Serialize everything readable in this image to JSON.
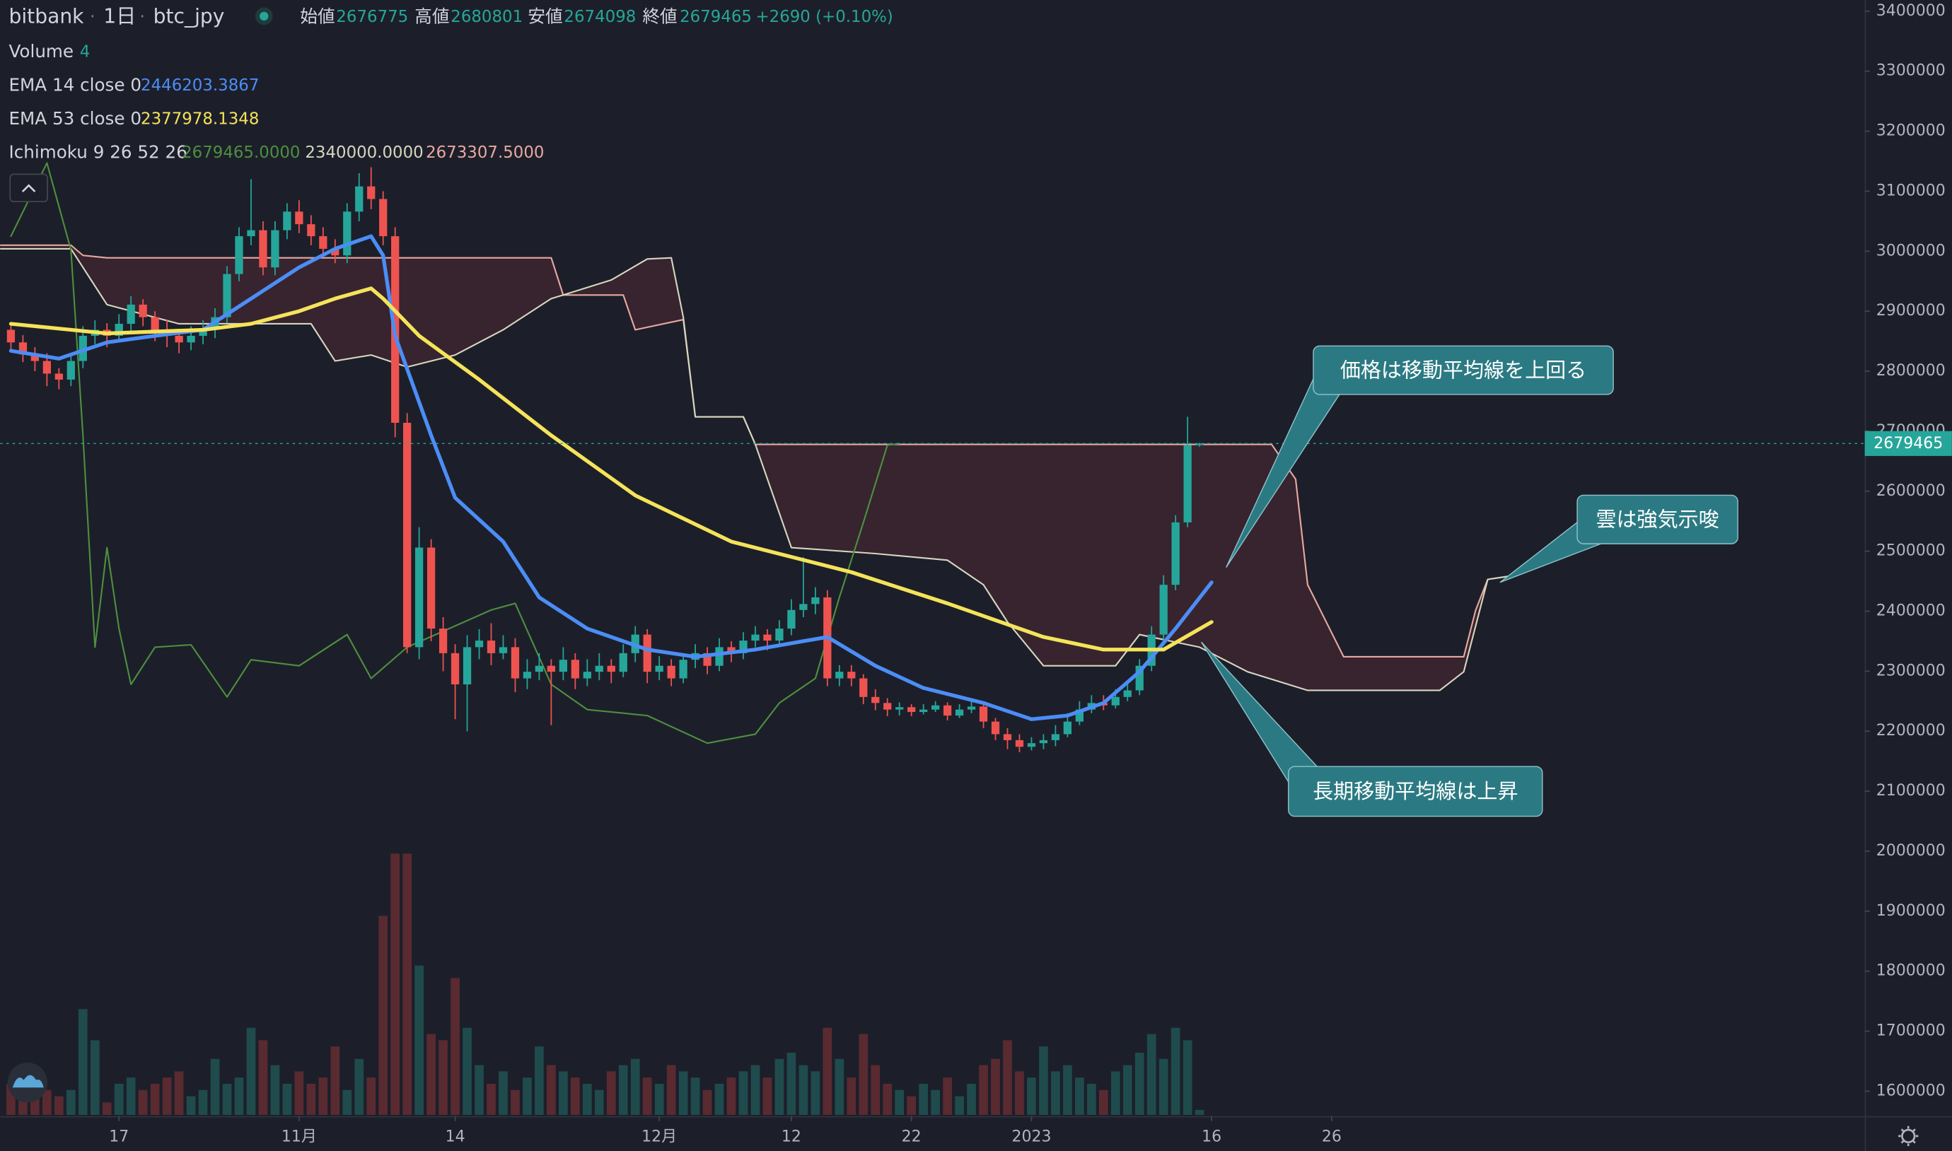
{
  "header": {
    "exchange": "bitbank",
    "interval": "1日",
    "symbol": "btc_jpy",
    "open_label": "始値",
    "high_label": "高値",
    "low_label": "安値",
    "close_label": "終値",
    "change": "+2690 (+0.10%)"
  },
  "legend": {
    "volume": "Volume",
    "ema14": "EMA 14 close 0",
    "ema14_value": "2446203.3867",
    "ema53": "EMA 53 close 0",
    "ema53_value": "2377978.1348",
    "ichimoku": "Ichimoku 9 26 52 26",
    "ichimoku_values": [
      "2679465.0000",
      "2340000.0000",
      "2673307.5000"
    ]
  },
  "chart_data": {
    "type": "candlestick",
    "xlim": [
      -24.9,
      130.4
    ],
    "xticks": [
      {
        "value": -15,
        "label": "17"
      },
      {
        "value": 0,
        "label": "11月"
      },
      {
        "value": 13,
        "label": "14"
      },
      {
        "value": 30,
        "label": "12月"
      },
      {
        "value": 41,
        "label": "12"
      },
      {
        "value": 51,
        "label": "22"
      },
      {
        "value": 61,
        "label": "2023"
      },
      {
        "value": 76,
        "label": "16"
      },
      {
        "value": 86,
        "label": "26"
      }
    ],
    "ylim": [
      1560400,
      3418700
    ],
    "yticks": [
      1600000,
      1700000,
      1800000,
      1900000,
      2000000,
      2100000,
      2200000,
      2300000,
      2400000,
      2500000,
      2600000,
      2700000,
      2800000,
      2900000,
      3000000,
      3100000,
      3200000,
      3300000,
      3400000
    ],
    "grid": false,
    "up_color": "#26a69a",
    "down_color": "#ef5350",
    "volume_up_color": "#1f4b4d",
    "volume_down_color": "#5a2a31",
    "x": [
      -24,
      -23,
      -22,
      -21,
      -20,
      -19,
      -18,
      -17,
      -16,
      -15,
      -14,
      -13,
      -12,
      -11,
      -10,
      -9,
      -8,
      -7,
      -6,
      -5,
      -4,
      -3,
      -2,
      -1,
      0,
      1,
      2,
      3,
      4,
      5,
      6,
      7,
      8,
      9,
      10,
      11,
      12,
      13,
      14,
      15,
      16,
      17,
      18,
      19,
      20,
      21,
      22,
      23,
      24,
      25,
      26,
      27,
      28,
      29,
      30,
      31,
      32,
      33,
      34,
      35,
      36,
      37,
      38,
      39,
      40,
      41,
      42,
      43,
      44,
      45,
      46,
      47,
      48,
      49,
      50,
      51,
      52,
      53,
      54,
      55,
      56,
      57,
      58,
      59,
      60,
      61,
      62,
      63,
      64,
      65,
      66,
      67,
      68,
      69,
      70,
      71,
      72,
      73,
      74,
      75
    ],
    "ohlc": [
      [
        2869000,
        2880000,
        2835000,
        2848000
      ],
      [
        2848000,
        2860000,
        2815000,
        2828000
      ],
      [
        2828000,
        2840000,
        2800000,
        2817000
      ],
      [
        2817000,
        2830000,
        2775000,
        2796000
      ],
      [
        2796000,
        2805000,
        2770000,
        2786000
      ],
      [
        2786000,
        2830000,
        2775000,
        2817000
      ],
      [
        2817000,
        2875000,
        2805000,
        2859000
      ],
      [
        2859000,
        2885000,
        2845000,
        2869000
      ],
      [
        2869000,
        2880000,
        2840000,
        2859000
      ],
      [
        2859000,
        2895000,
        2850000,
        2879000
      ],
      [
        2879000,
        2925000,
        2865000,
        2911000
      ],
      [
        2911000,
        2920000,
        2875000,
        2890000
      ],
      [
        2890000,
        2900000,
        2850000,
        2869000
      ],
      [
        2869000,
        2885000,
        2840000,
        2859000
      ],
      [
        2859000,
        2870000,
        2830000,
        2848000
      ],
      [
        2848000,
        2875000,
        2835000,
        2859000
      ],
      [
        2859000,
        2885000,
        2845000,
        2869000
      ],
      [
        2869000,
        2905000,
        2855000,
        2890000
      ],
      [
        2890000,
        2975000,
        2880000,
        2962000
      ],
      [
        2962000,
        3040000,
        2950000,
        3025000
      ],
      [
        3025000,
        3120000,
        3010000,
        3035000
      ],
      [
        3035000,
        3050000,
        2960000,
        2973000
      ],
      [
        2973000,
        3050000,
        2960000,
        3035000
      ],
      [
        3035000,
        3080000,
        3020000,
        3066000
      ],
      [
        3066000,
        3085000,
        3030000,
        3045000
      ],
      [
        3045000,
        3060000,
        3010000,
        3025000
      ],
      [
        3025000,
        3040000,
        2990000,
        3004000
      ],
      [
        3004000,
        3020000,
        2980000,
        2993000
      ],
      [
        2993000,
        3080000,
        2980000,
        3066000
      ],
      [
        3066000,
        3130000,
        3050000,
        3108000
      ],
      [
        3108000,
        3140000,
        3070000,
        3087000
      ],
      [
        3087000,
        3100000,
        3010000,
        3025000
      ],
      [
        3025000,
        3040000,
        2690000,
        2714000
      ],
      [
        2714000,
        2730000,
        2330000,
        2340000
      ],
      [
        2340000,
        2540000,
        2320000,
        2506000
      ],
      [
        2506000,
        2520000,
        2350000,
        2371000
      ],
      [
        2371000,
        2390000,
        2300000,
        2330000
      ],
      [
        2330000,
        2345000,
        2220000,
        2278000
      ],
      [
        2278000,
        2360000,
        2200000,
        2340000
      ],
      [
        2340000,
        2370000,
        2320000,
        2351000
      ],
      [
        2351000,
        2380000,
        2310000,
        2330000
      ],
      [
        2330000,
        2360000,
        2320000,
        2340000
      ],
      [
        2340000,
        2355000,
        2265000,
        2288000
      ],
      [
        2288000,
        2320000,
        2270000,
        2299000
      ],
      [
        2299000,
        2330000,
        2285000,
        2309000
      ],
      [
        2309000,
        2320000,
        2210000,
        2299000
      ],
      [
        2299000,
        2340000,
        2285000,
        2319000
      ],
      [
        2319000,
        2330000,
        2270000,
        2288000
      ],
      [
        2288000,
        2320000,
        2275000,
        2299000
      ],
      [
        2299000,
        2330000,
        2285000,
        2309000
      ],
      [
        2309000,
        2320000,
        2280000,
        2299000
      ],
      [
        2299000,
        2345000,
        2290000,
        2330000
      ],
      [
        2330000,
        2375000,
        2315000,
        2361000
      ],
      [
        2361000,
        2370000,
        2280000,
        2299000
      ],
      [
        2299000,
        2325000,
        2285000,
        2309000
      ],
      [
        2309000,
        2320000,
        2275000,
        2288000
      ],
      [
        2288000,
        2330000,
        2280000,
        2319000
      ],
      [
        2319000,
        2345000,
        2305000,
        2330000
      ],
      [
        2330000,
        2340000,
        2295000,
        2309000
      ],
      [
        2309000,
        2355000,
        2300000,
        2340000
      ],
      [
        2340000,
        2350000,
        2315000,
        2330000
      ],
      [
        2330000,
        2365000,
        2320000,
        2351000
      ],
      [
        2351000,
        2375000,
        2340000,
        2361000
      ],
      [
        2361000,
        2370000,
        2335000,
        2351000
      ],
      [
        2351000,
        2385000,
        2340000,
        2371000
      ],
      [
        2371000,
        2420000,
        2360000,
        2402000
      ],
      [
        2402000,
        2490000,
        2390000,
        2412000
      ],
      [
        2412000,
        2440000,
        2395000,
        2423000
      ],
      [
        2423000,
        2435000,
        2275000,
        2288000
      ],
      [
        2288000,
        2310000,
        2275000,
        2299000
      ],
      [
        2299000,
        2310000,
        2275000,
        2288000
      ],
      [
        2288000,
        2295000,
        2245000,
        2257000
      ],
      [
        2257000,
        2270000,
        2235000,
        2247000
      ],
      [
        2247000,
        2255000,
        2225000,
        2236000
      ],
      [
        2236000,
        2248000,
        2226000,
        2240000
      ],
      [
        2240000,
        2245000,
        2225000,
        2232000
      ],
      [
        2232000,
        2245000,
        2228000,
        2236000
      ],
      [
        2236000,
        2250000,
        2232000,
        2243000
      ],
      [
        2243000,
        2248000,
        2218000,
        2226000
      ],
      [
        2226000,
        2245000,
        2222000,
        2236000
      ],
      [
        2236000,
        2250000,
        2230000,
        2241000
      ],
      [
        2241000,
        2248000,
        2205000,
        2216000
      ],
      [
        2216000,
        2222000,
        2185000,
        2195000
      ],
      [
        2195000,
        2205000,
        2170000,
        2185000
      ],
      [
        2185000,
        2195000,
        2165000,
        2174000
      ],
      [
        2174000,
        2190000,
        2168000,
        2180000
      ],
      [
        2180000,
        2195000,
        2170000,
        2185000
      ],
      [
        2185000,
        2210000,
        2175000,
        2195000
      ],
      [
        2195000,
        2230000,
        2190000,
        2216000
      ],
      [
        2216000,
        2250000,
        2210000,
        2236000
      ],
      [
        2236000,
        2260000,
        2230000,
        2247000
      ],
      [
        2247000,
        2260000,
        2235000,
        2243000
      ],
      [
        2243000,
        2270000,
        2238000,
        2257000
      ],
      [
        2257000,
        2285000,
        2250000,
        2268000
      ],
      [
        2268000,
        2320000,
        2260000,
        2309000
      ],
      [
        2309000,
        2375000,
        2300000,
        2361000
      ],
      [
        2361000,
        2460000,
        2350000,
        2444000
      ],
      [
        2444000,
        2560000,
        2435000,
        2548000
      ],
      [
        2548000,
        2724000,
        2540000,
        2676775
      ],
      [
        2676775,
        2680801,
        2674098,
        2679465
      ]
    ],
    "volume": [
      25,
      20,
      15,
      20,
      15,
      20,
      85,
      60,
      10,
      25,
      30,
      20,
      25,
      30,
      35,
      15,
      20,
      45,
      25,
      30,
      70,
      60,
      40,
      25,
      35,
      25,
      30,
      55,
      20,
      45,
      30,
      160,
      210,
      210,
      120,
      65,
      60,
      110,
      70,
      40,
      25,
      35,
      20,
      30,
      55,
      40,
      35,
      30,
      25,
      20,
      35,
      40,
      45,
      30,
      25,
      40,
      35,
      30,
      20,
      25,
      30,
      35,
      40,
      30,
      45,
      50,
      40,
      35,
      70,
      45,
      30,
      65,
      40,
      25,
      20,
      15,
      25,
      20,
      30,
      15,
      25,
      40,
      45,
      60,
      35,
      30,
      55,
      35,
      40,
      30,
      25,
      20,
      35,
      40,
      50,
      65,
      45,
      70,
      60,
      4
    ],
    "cloud_color": "#6b2f3a",
    "lines": [
      {
        "color": "#e8a8a0",
        "width": 1.2,
        "x": [
          -25,
          -19,
          -18,
          -16,
          21,
          22,
          27,
          28,
          32,
          33,
          37,
          38,
          81,
          83,
          84,
          87,
          97,
          98,
          99,
          101
        ],
        "values": [
          3010000,
          3010000,
          2993000,
          2989000,
          2989000,
          2927000,
          2927000,
          2869000,
          2886000,
          2724000,
          2724000,
          2678000,
          2678000,
          2620000,
          2444000,
          2324000,
          2324000,
          2402000,
          2453000,
          2459000
        ]
      },
      {
        "color": "#d6d6bf",
        "width": 1.2,
        "x": [
          -25,
          -19,
          -18,
          -16,
          -10,
          1,
          2,
          3,
          6,
          9,
          13,
          17,
          21,
          22,
          26,
          29,
          31,
          32,
          33,
          37,
          38,
          41,
          48,
          54,
          57,
          59,
          62,
          68,
          70,
          75,
          79,
          84,
          95,
          97,
          99,
          101
        ],
        "values": [
          3004000,
          3004000,
          2973000,
          2911000,
          2879000,
          2879000,
          2848000,
          2817000,
          2827000,
          2807000,
          2827000,
          2869000,
          2921000,
          2927000,
          2952000,
          2987000,
          2989000,
          2890000,
          2724000,
          2724000,
          2678000,
          2506000,
          2496000,
          2485000,
          2444000,
          2382000,
          2309000,
          2309000,
          2361000,
          2340000,
          2299000,
          2268000,
          2268000,
          2299000,
          2453000,
          2459000
        ]
      },
      {
        "color": "#4e8f3f",
        "width": 1.2,
        "x": [
          -24,
          -21,
          -19,
          -18,
          -17,
          -16,
          -15,
          -14,
          -12,
          -9,
          -6,
          -4,
          0,
          4,
          6,
          9,
          16,
          18,
          21,
          24,
          29,
          34,
          38,
          40,
          43,
          45,
          47,
          49,
          50
        ],
        "values": [
          3025000,
          3147000,
          3002000,
          2693000,
          2340000,
          2506000,
          2371000,
          2278000,
          2340000,
          2344000,
          2257000,
          2319000,
          2309000,
          2361000,
          2288000,
          2340000,
          2402000,
          2413000,
          2278000,
          2236000,
          2226000,
          2180000,
          2195000,
          2247000,
          2288000,
          2423000,
          2548000,
          2676775,
          2679465
        ]
      },
      {
        "color": "#4c8df6",
        "width": 3,
        "x": [
          -24,
          -20,
          -16,
          -12,
          -8,
          -4,
          0,
          3,
          6,
          7,
          8,
          11,
          13,
          17,
          20,
          24,
          29,
          33,
          38,
          44,
          48,
          52,
          57,
          61,
          64,
          67,
          70,
          73,
          76
        ],
        "values": [
          2834000,
          2821000,
          2848000,
          2859000,
          2869000,
          2921000,
          2973000,
          3004000,
          3025000,
          2993000,
          2859000,
          2693000,
          2589000,
          2516000,
          2423000,
          2371000,
          2336000,
          2324000,
          2336000,
          2357000,
          2309000,
          2272000,
          2247000,
          2220000,
          2226000,
          2247000,
          2299000,
          2371000,
          2448000
        ]
      },
      {
        "color": "#f5e35a",
        "width": 3,
        "x": [
          -24,
          -16,
          -8,
          -4,
          0,
          3,
          6,
          7,
          10,
          15,
          21,
          28,
          36,
          46,
          54,
          62,
          67,
          72,
          76
        ],
        "values": [
          2879000,
          2863000,
          2869000,
          2879000,
          2900000,
          2921000,
          2938000,
          2921000,
          2859000,
          2786000,
          2693000,
          2593000,
          2516000,
          2465000,
          2413000,
          2357000,
          2336000,
          2336000,
          2382000
        ]
      }
    ],
    "annotations": [
      "価格は移動平均線を上回る",
      "雲は強気示唆",
      "長期移動平均線は上昇"
    ]
  }
}
